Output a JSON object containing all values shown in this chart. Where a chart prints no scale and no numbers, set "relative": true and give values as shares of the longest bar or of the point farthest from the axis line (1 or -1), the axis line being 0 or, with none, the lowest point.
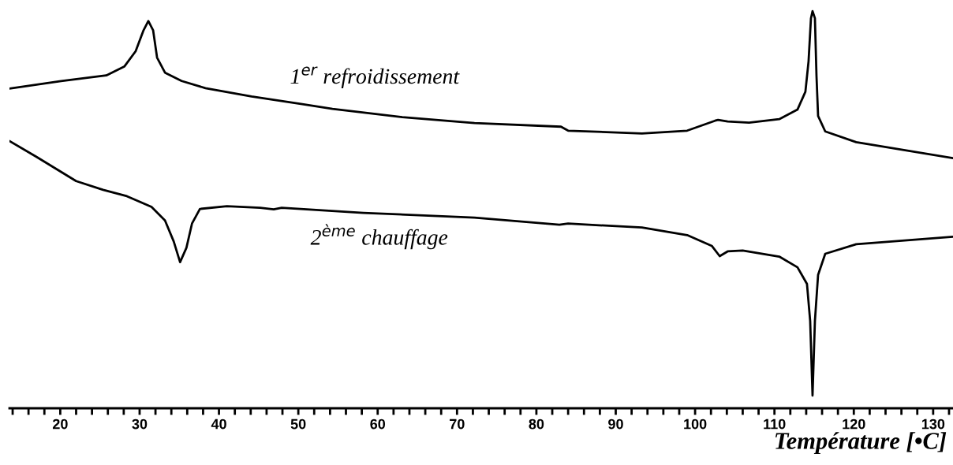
{
  "chart_data": {
    "type": "line",
    "relative": true,
    "xlabel": "Température [•C]",
    "tick_labels": "x",
    "xlim": [
      13.6,
      132.5
    ],
    "xticks": [
      {
        "value": 14,
        "label": null
      },
      {
        "value": 16,
        "label": null
      },
      {
        "value": 18,
        "label": null
      },
      20,
      {
        "value": 22,
        "label": null
      },
      {
        "value": 24,
        "label": null
      },
      {
        "value": 26,
        "label": null
      },
      {
        "value": 28,
        "label": null
      },
      30,
      {
        "value": 32,
        "label": null
      },
      {
        "value": 34,
        "label": null
      },
      {
        "value": 36,
        "label": null
      },
      {
        "value": 38,
        "label": null
      },
      40,
      {
        "value": 42,
        "label": null
      },
      {
        "value": 44,
        "label": null
      },
      {
        "value": 46,
        "label": null
      },
      {
        "value": 48,
        "label": null
      },
      50,
      {
        "value": 52,
        "label": null
      },
      {
        "value": 54,
        "label": null
      },
      {
        "value": 56,
        "label": null
      },
      {
        "value": 58,
        "label": null
      },
      60,
      {
        "value": 62,
        "label": null
      },
      {
        "value": 64,
        "label": null
      },
      {
        "value": 66,
        "label": null
      },
      {
        "value": 68,
        "label": null
      },
      70,
      {
        "value": 72,
        "label": null
      },
      {
        "value": 74,
        "label": null
      },
      {
        "value": 76,
        "label": null
      },
      {
        "value": 78,
        "label": null
      },
      80,
      {
        "value": 82,
        "label": null
      },
      {
        "value": 84,
        "label": null
      },
      {
        "value": 86,
        "label": null
      },
      {
        "value": 88,
        "label": null
      },
      90,
      {
        "value": 92,
        "label": null
      },
      {
        "value": 94,
        "label": null
      },
      {
        "value": 96,
        "label": null
      },
      {
        "value": 98,
        "label": null
      },
      100,
      {
        "value": 102,
        "label": null
      },
      {
        "value": 104,
        "label": null
      },
      {
        "value": 106,
        "label": null
      },
      {
        "value": 108,
        "label": null
      },
      110,
      {
        "value": 112,
        "label": null
      },
      {
        "value": 114,
        "label": null
      },
      {
        "value": 116,
        "label": null
      },
      {
        "value": 118,
        "label": null
      },
      120,
      {
        "value": 122,
        "label": null
      },
      {
        "value": 124,
        "label": null
      },
      {
        "value": 126,
        "label": null
      },
      {
        "value": 128,
        "label": null
      },
      130,
      {
        "value": 132,
        "label": null
      }
    ],
    "series": [
      {
        "name": "1$^{er}$ refroidissement",
        "color": "#000000",
        "x": [
          13.6,
          20.1,
          25.8,
          28.1,
          29.5,
          30.5,
          31.1,
          31.7,
          32.2,
          33.2,
          35.3,
          38.3,
          44.1,
          50.5,
          54.3,
          63.1,
          72.2,
          83.1,
          84.0,
          93.3,
          99.0,
          102.5,
          102.9,
          104.1,
          106.8,
          110.6,
          112.9,
          113.9,
          114.3,
          114.6,
          114.8,
          115.1,
          115.3,
          115.5,
          116.4,
          120.3,
          132.5
        ],
        "values": [
          0.805,
          0.824,
          0.838,
          0.861,
          0.899,
          0.952,
          0.975,
          0.952,
          0.883,
          0.845,
          0.824,
          0.806,
          0.785,
          0.766,
          0.754,
          0.733,
          0.718,
          0.709,
          0.699,
          0.692,
          0.699,
          0.724,
          0.726,
          0.722,
          0.719,
          0.728,
          0.752,
          0.797,
          0.874,
          0.982,
          1,
          0.982,
          0.836,
          0.736,
          0.697,
          0.67,
          0.63
        ]
      },
      {
        "name": "2$^{ème}$ chauffage",
        "color": "#000000",
        "x": [
          13.6,
          17.0,
          22.0,
          25.4,
          28.4,
          31.5,
          33.2,
          34.3,
          35.1,
          35.9,
          36.6,
          37.6,
          41.0,
          45.2,
          46.9,
          47.9,
          58.2,
          72.2,
          82.9,
          84.0,
          93.3,
          99.0,
          102.1,
          103.1,
          104.1,
          106.0,
          110.6,
          112.9,
          114.1,
          114.5,
          114.8,
          115.1,
          115.5,
          116.4,
          120.3,
          132.5
        ],
        "values": [
          0.673,
          0.633,
          0.572,
          0.55,
          0.534,
          0.507,
          0.473,
          0.42,
          0.368,
          0.404,
          0.465,
          0.502,
          0.509,
          0.505,
          0.501,
          0.505,
          0.492,
          0.48,
          0.462,
          0.465,
          0.455,
          0.436,
          0.409,
          0.383,
          0.395,
          0.397,
          0.382,
          0.355,
          0.313,
          0.22,
          0.032,
          0.22,
          0.336,
          0.389,
          0.413,
          0.432
        ]
      }
    ]
  }
}
